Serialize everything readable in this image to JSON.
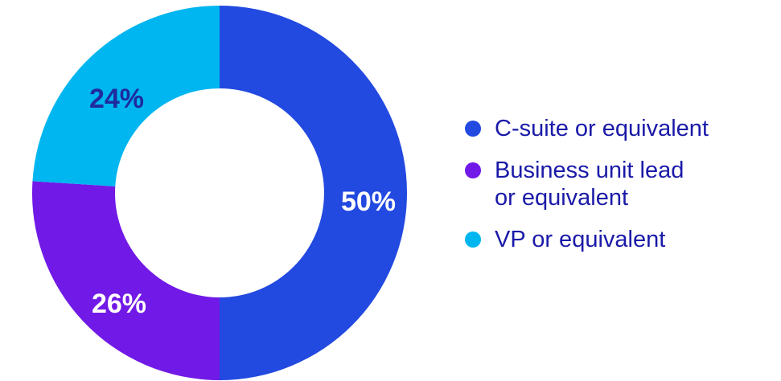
{
  "chart_data": {
    "type": "pie",
    "donut": true,
    "categories": [
      "C-suite or equivalent",
      "Business unit lead or equivalent",
      "VP or equivalent"
    ],
    "values": [
      50,
      26,
      24
    ],
    "value_labels": [
      "50%",
      "26%",
      "24%"
    ],
    "colors": [
      "#2249e0",
      "#7119e6",
      "#00b6f0"
    ],
    "label_colors": [
      "#ffffff",
      "#ffffff",
      "#1f2aa0"
    ],
    "legend": {
      "placement": "right",
      "items": [
        {
          "lines": [
            "C-suite or equivalent"
          ]
        },
        {
          "lines": [
            "Business unit lead",
            "or equivalent"
          ]
        },
        {
          "lines": [
            "VP or equivalent"
          ]
        }
      ]
    }
  }
}
